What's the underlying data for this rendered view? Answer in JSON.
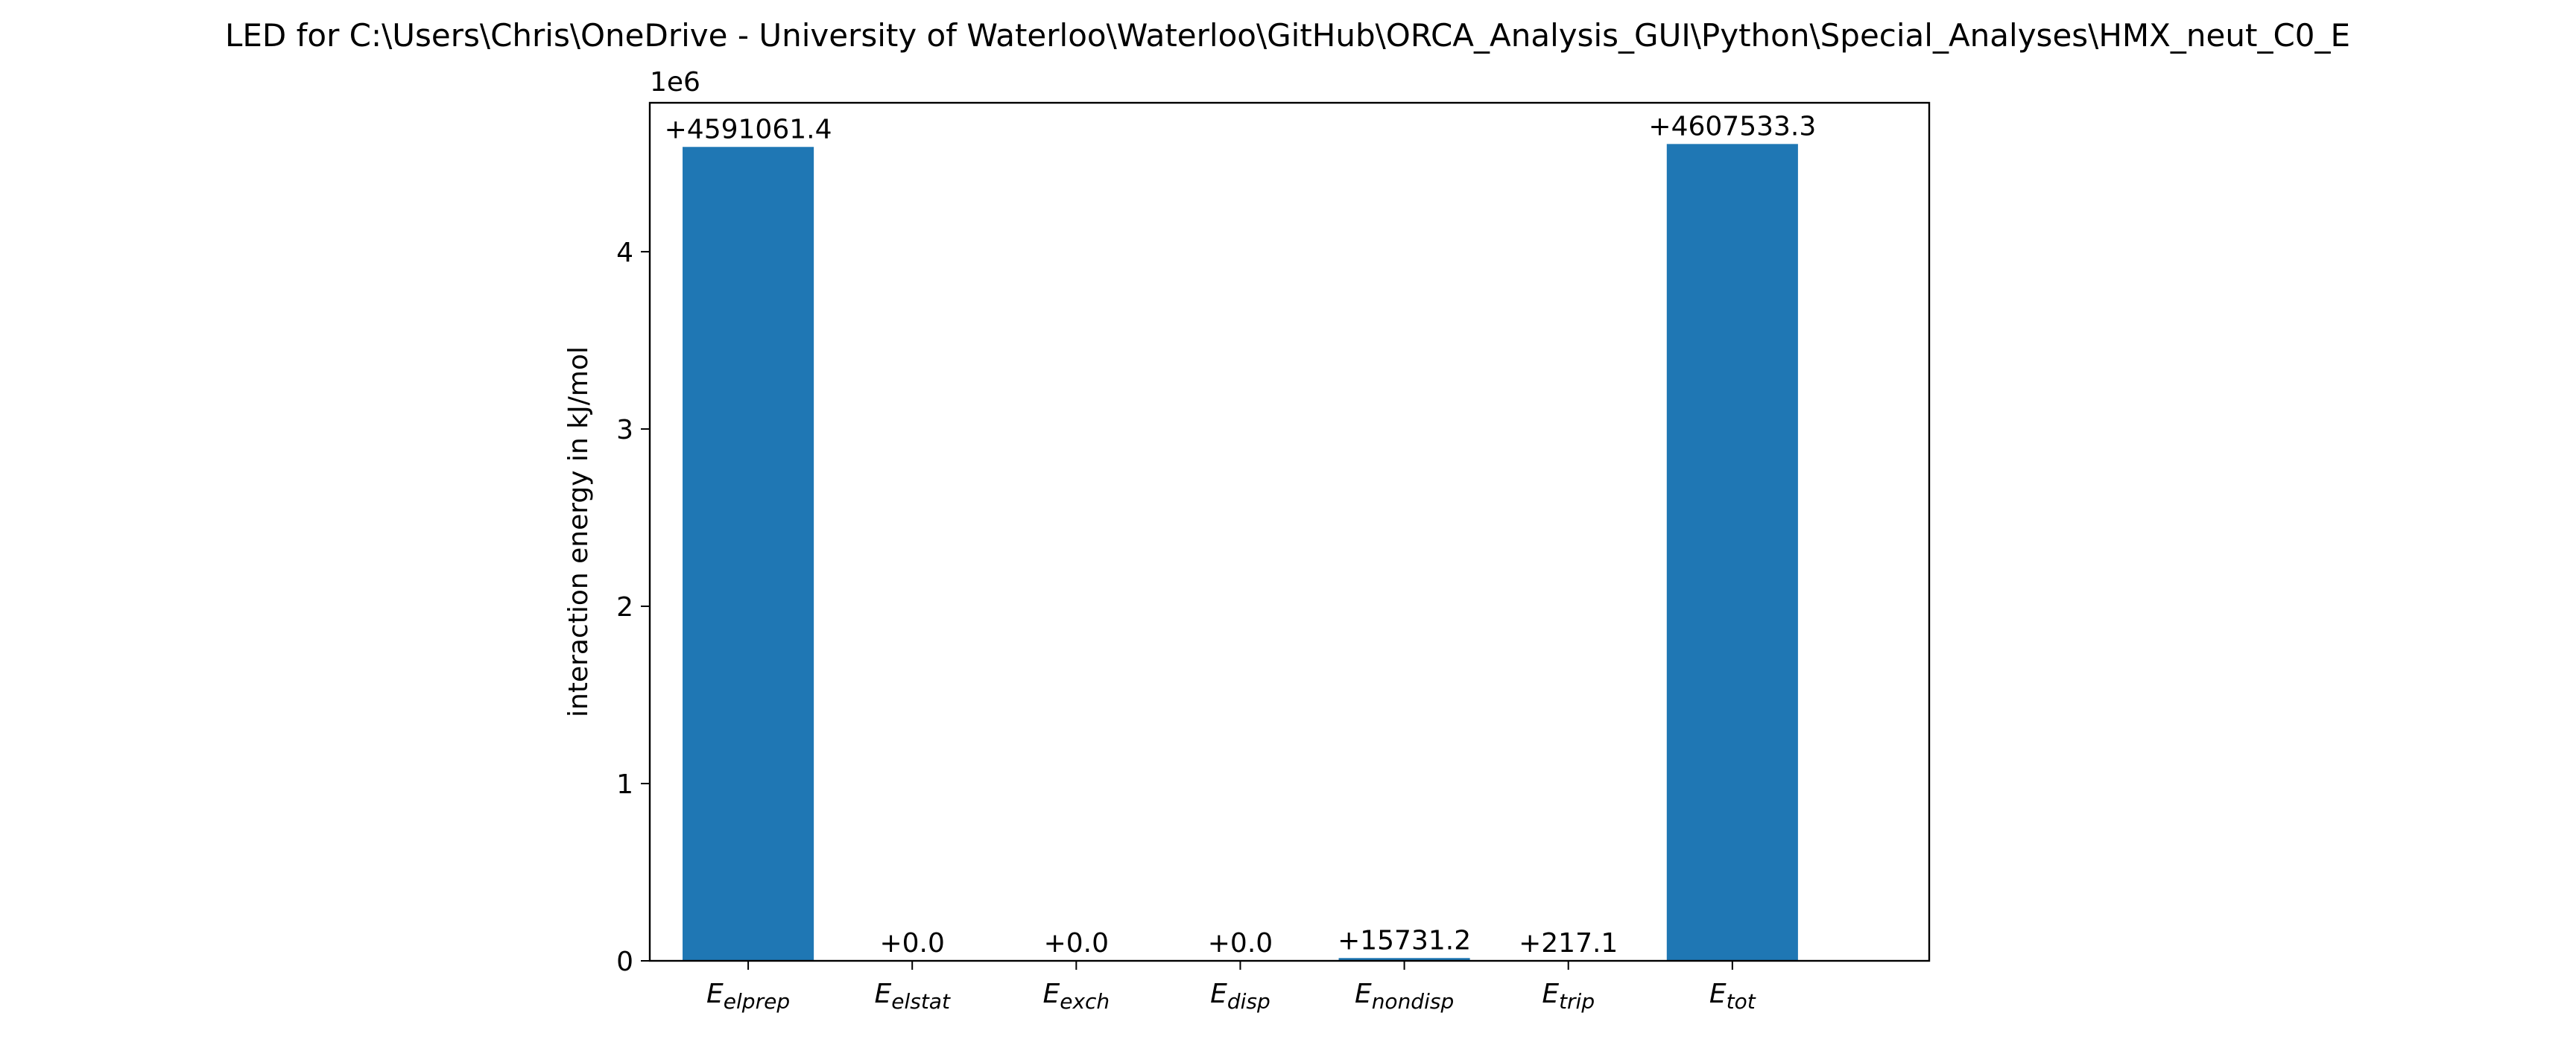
{
  "chart_data": {
    "type": "bar",
    "title": "LED for C:\\Users\\Chris\\OneDrive - University of Waterloo\\Waterloo\\GitHub\\ORCA_Analysis_GUI\\Python\\Special_Analyses\\HMX_neut_C0_E",
    "xlabel": "",
    "ylabel": "interaction energy in kJ/mol",
    "y_scale_label": "1e6",
    "ylim": [
      0,
      4840000
    ],
    "yticks": [
      0,
      1000000,
      2000000,
      3000000,
      4000000
    ],
    "ytick_labels": [
      "0",
      "1",
      "2",
      "3",
      "4"
    ],
    "categories": [
      {
        "base": "E",
        "sub": "elprep"
      },
      {
        "base": "E",
        "sub": "elstat"
      },
      {
        "base": "E",
        "sub": "exch"
      },
      {
        "base": "E",
        "sub": "disp"
      },
      {
        "base": "E",
        "sub": "nondisp"
      },
      {
        "base": "E",
        "sub": "trip"
      },
      {
        "base": "E",
        "sub": "tot"
      }
    ],
    "values": [
      4591061.4,
      0.0,
      0.0,
      0.0,
      15731.2,
      217.1,
      4607533.3
    ],
    "data_labels": [
      "+4591061.4",
      "+0.0",
      "+0.0",
      "+0.0",
      "+15731.2",
      "+217.1",
      "+4607533.3"
    ],
    "bar_color": "#1f77b4",
    "grid": false,
    "legend": "none"
  }
}
